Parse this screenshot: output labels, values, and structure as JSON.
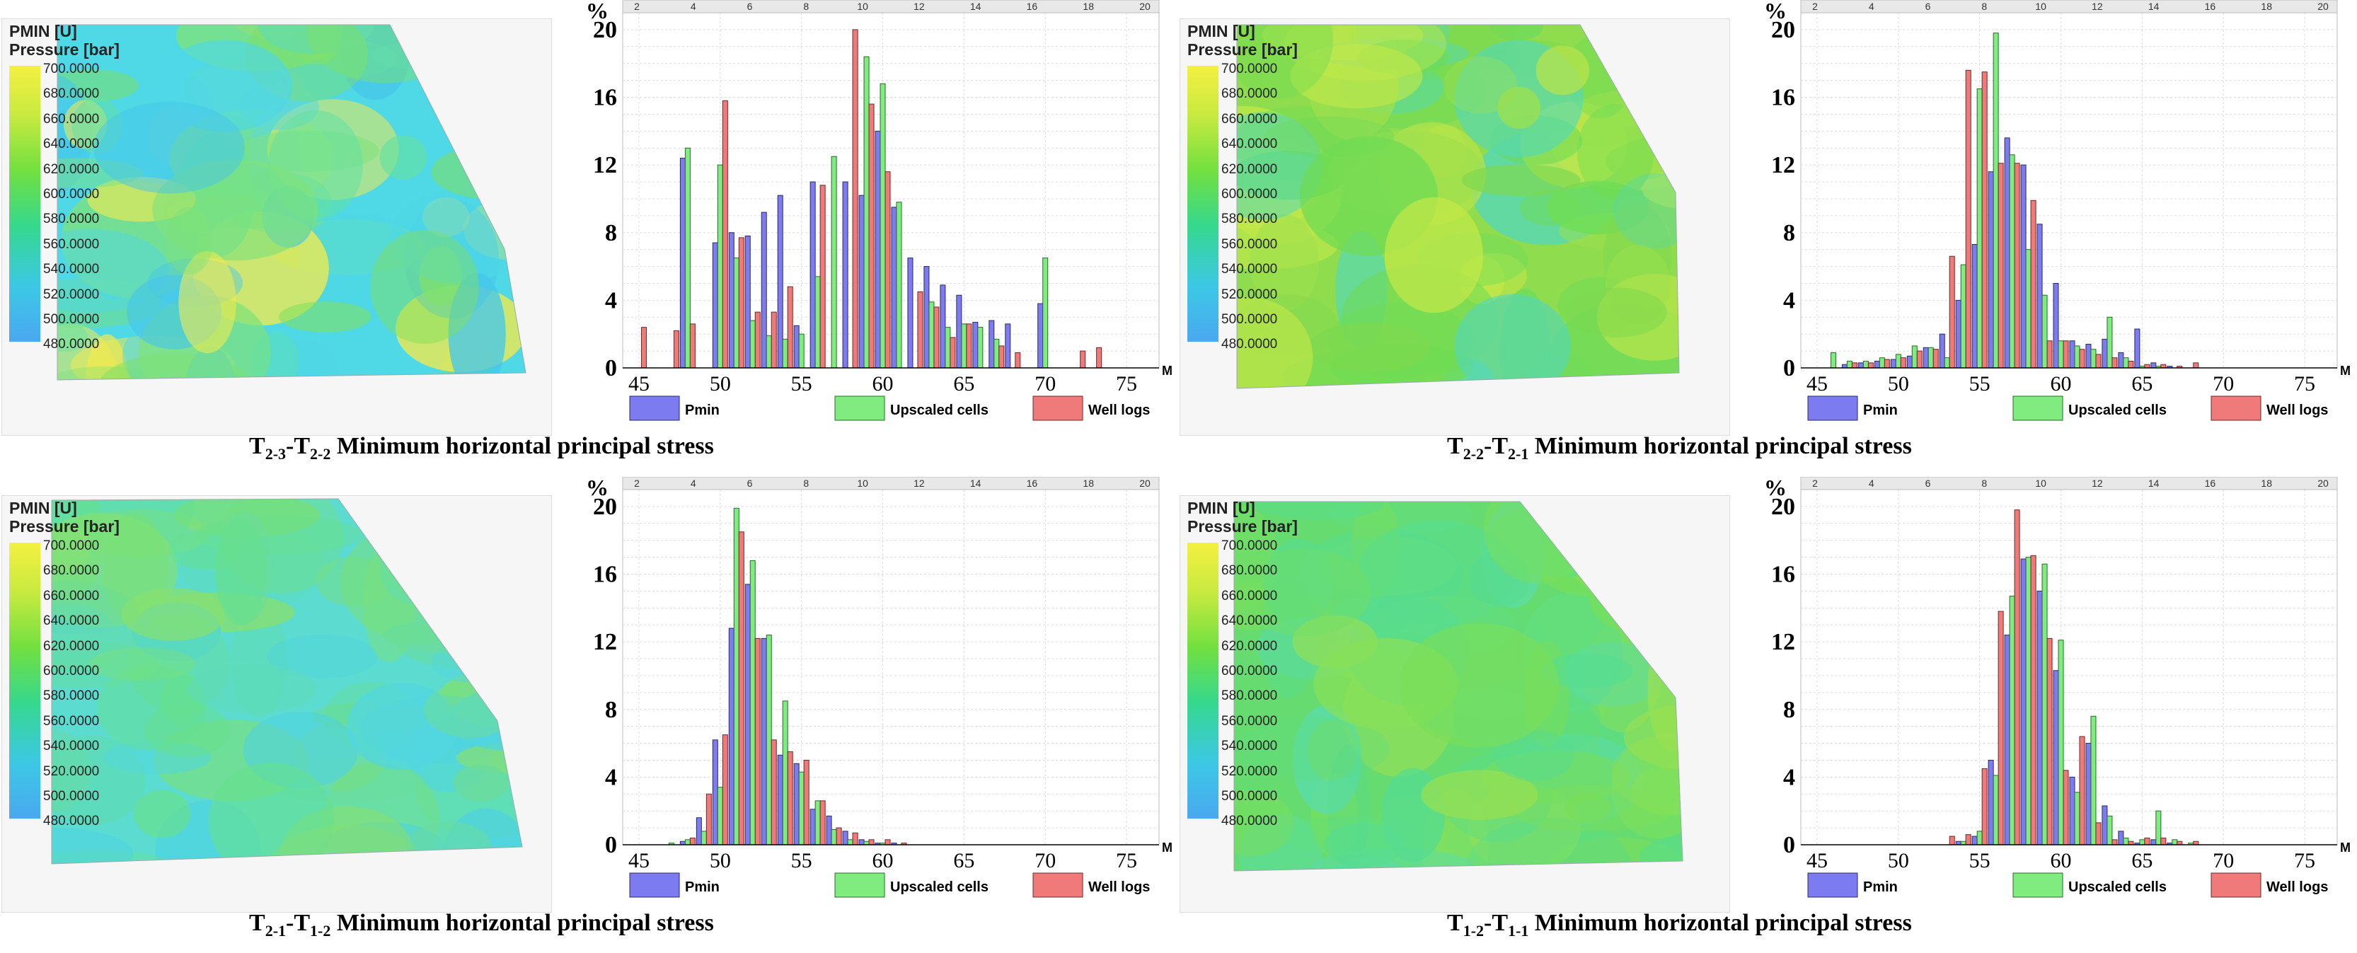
{
  "colors": {
    "pmin": "#7c7cf0",
    "upscaled": "#80ec80",
    "well_logs": "#f07a7a"
  },
  "map_legend": {
    "title": "PMIN [U]",
    "subtitle": "Pressure [bar]",
    "values": [
      "700.0000",
      "680.0000",
      "660.0000",
      "640.0000",
      "620.0000",
      "600.0000",
      "580.0000",
      "560.0000",
      "540.0000",
      "520.0000",
      "500.0000",
      "480.0000"
    ]
  },
  "chart_common": {
    "y_unit": "%",
    "x_unit": "MPa",
    "y_ticks": [
      "0",
      "4",
      "8",
      "12",
      "16",
      "20"
    ],
    "x_ticks": [
      "45",
      "50",
      "55",
      "60",
      "65",
      "70",
      "75"
    ],
    "top_ticks": [
      "2",
      "4",
      "6",
      "8",
      "10",
      "12",
      "14",
      "16",
      "18",
      "20"
    ],
    "legend": [
      "Pmin",
      "Upscaled cells",
      "Well logs"
    ]
  },
  "panels": [
    {
      "caption": {
        "pre": "T",
        "s1": "2-3",
        "mid": "-T",
        "s2": "2-2",
        "rest": " Minimum horizontal principal stress"
      }
    },
    {
      "caption": {
        "pre": "T",
        "s1": "2-2",
        "mid": "-T",
        "s2": "2-1",
        "rest": " Minimum horizontal principal stress"
      }
    },
    {
      "caption": {
        "pre": "T",
        "s1": "2-1",
        "mid": "-T",
        "s2": "1-2",
        "rest": " Minimum horizontal principal stress"
      }
    },
    {
      "caption": {
        "pre": "T",
        "s1": "1-2",
        "mid": "-T",
        "s2": "1-1",
        "rest": " Minimum horizontal principal stress"
      }
    }
  ],
  "chart_data": [
    {
      "type": "bar",
      "title": "T2-3-T2-2 Minimum horizontal principal stress",
      "xlabel": "MPa",
      "ylabel": "%",
      "xlim": [
        44,
        77
      ],
      "ylim": [
        0,
        21
      ],
      "categories": [
        45,
        46,
        47,
        48,
        49,
        50,
        51,
        52,
        53,
        54,
        55,
        56,
        57,
        58,
        59,
        60,
        61,
        62,
        63,
        64,
        65,
        66,
        67,
        68,
        69,
        70,
        71,
        72,
        73,
        74,
        75,
        76
      ],
      "series": [
        {
          "name": "Pmin",
          "values": [
            0,
            0,
            0,
            12.4,
            0,
            7.4,
            8.0,
            7.8,
            9.2,
            10.2,
            2.5,
            11.0,
            0,
            11.0,
            10.2,
            14.0,
            9.5,
            6.5,
            6.0,
            4.9,
            4.3,
            2.7,
            2.8,
            2.6,
            0,
            3.8,
            0,
            0,
            0,
            0,
            0,
            0
          ]
        },
        {
          "name": "Upscaled cells",
          "values": [
            0,
            0,
            0,
            13.0,
            0,
            12.0,
            6.5,
            2.8,
            1.9,
            1.7,
            2.0,
            5.4,
            12.5,
            0,
            18.4,
            16.8,
            9.8,
            0,
            3.9,
            2.4,
            2.6,
            2.4,
            1.7,
            0,
            0,
            6.5,
            0,
            0,
            0,
            0,
            0,
            0
          ]
        },
        {
          "name": "Well logs",
          "values": [
            2.4,
            0,
            2.2,
            2.6,
            0,
            15.8,
            7.7,
            3.3,
            3.3,
            4.8,
            0,
            10.8,
            0,
            20.0,
            15.6,
            11.6,
            0,
            4.5,
            3.6,
            1.8,
            2.6,
            0,
            1.3,
            0.9,
            0,
            0,
            0,
            1.0,
            1.2,
            0,
            0,
            0
          ]
        }
      ]
    },
    {
      "type": "bar",
      "title": "T2-2-T2-1 Minimum horizontal principal stress",
      "xlabel": "MPa",
      "ylabel": "%",
      "xlim": [
        44,
        77
      ],
      "ylim": [
        0,
        21
      ],
      "categories": [
        45,
        46,
        47,
        48,
        49,
        50,
        51,
        52,
        53,
        54,
        55,
        56,
        57,
        58,
        59,
        60,
        61,
        62,
        63,
        64,
        65,
        66,
        67,
        68,
        69,
        70,
        71,
        72,
        73,
        74,
        75,
        76
      ],
      "series": [
        {
          "name": "Pmin",
          "values": [
            0,
            0,
            0.2,
            0.3,
            0.4,
            0.5,
            0.7,
            1.2,
            2.0,
            4.0,
            7.3,
            11.6,
            13.6,
            12.0,
            8.5,
            5.0,
            1.6,
            1.4,
            1.7,
            0.9,
            2.3,
            0.3,
            0.1,
            0,
            0,
            0,
            0,
            0,
            0,
            0,
            0,
            0
          ]
        },
        {
          "name": "Upscaled cells",
          "values": [
            0,
            0.9,
            0.4,
            0.4,
            0.6,
            0.8,
            1.3,
            1.2,
            0.6,
            6.1,
            16.5,
            19.8,
            12.6,
            7.0,
            4.3,
            1.6,
            1.3,
            1.1,
            3.0,
            0.6,
            0.1,
            0.1,
            0,
            0,
            0,
            0,
            0,
            0,
            0,
            0,
            0,
            0
          ]
        },
        {
          "name": "Well logs",
          "values": [
            0,
            0,
            0.3,
            0.3,
            0.5,
            0.6,
            1.0,
            1.1,
            6.6,
            17.6,
            17.5,
            12.1,
            12.1,
            9.9,
            1.6,
            1.6,
            1.1,
            0.8,
            0.6,
            0.4,
            0.2,
            0.2,
            0.1,
            0.3,
            0,
            0,
            0,
            0,
            0,
            0,
            0,
            0
          ]
        }
      ]
    },
    {
      "type": "bar",
      "title": "T2-1-T1-2 Minimum horizontal principal stress",
      "xlabel": "MPa",
      "ylabel": "%",
      "xlim": [
        44,
        77
      ],
      "ylim": [
        0,
        21
      ],
      "categories": [
        45,
        46,
        47,
        48,
        49,
        50,
        51,
        52,
        53,
        54,
        55,
        56,
        57,
        58,
        59,
        60,
        61,
        62,
        63,
        64,
        65,
        66,
        67,
        68,
        69,
        70,
        71,
        72,
        73,
        74,
        75,
        76
      ],
      "series": [
        {
          "name": "Pmin",
          "values": [
            0,
            0,
            0,
            0.2,
            1.6,
            6.2,
            12.8,
            15.4,
            12.2,
            5.3,
            4.8,
            2.1,
            1.7,
            0.8,
            0.3,
            0.1,
            0.1,
            0,
            0,
            0,
            0,
            0,
            0,
            0,
            0,
            0,
            0,
            0,
            0,
            0,
            0,
            0
          ]
        },
        {
          "name": "Upscaled cells",
          "values": [
            0,
            0,
            0.1,
            0.3,
            0.8,
            3.4,
            19.9,
            16.8,
            12.4,
            8.5,
            4.3,
            2.6,
            0.9,
            0.3,
            0.2,
            0.1,
            0,
            0,
            0,
            0,
            0,
            0,
            0,
            0,
            0,
            0,
            0,
            0,
            0,
            0,
            0,
            0
          ]
        },
        {
          "name": "Well logs",
          "values": [
            0,
            0,
            0,
            0.4,
            3.0,
            6.5,
            18.5,
            12.2,
            6.2,
            5.5,
            5.0,
            2.6,
            1.0,
            0.7,
            0.3,
            0.3,
            0.1,
            0,
            0,
            0,
            0,
            0,
            0,
            0,
            0,
            0,
            0,
            0,
            0,
            0,
            0,
            0
          ]
        }
      ]
    },
    {
      "type": "bar",
      "title": "T1-2-T1-1 Minimum horizontal principal stress",
      "xlabel": "MPa",
      "ylabel": "%",
      "xlim": [
        44,
        77
      ],
      "ylim": [
        0,
        21
      ],
      "categories": [
        45,
        46,
        47,
        48,
        49,
        50,
        51,
        52,
        53,
        54,
        55,
        56,
        57,
        58,
        59,
        60,
        61,
        62,
        63,
        64,
        65,
        66,
        67,
        68,
        69,
        70,
        71,
        72,
        73,
        74,
        75,
        76
      ],
      "series": [
        {
          "name": "Pmin",
          "values": [
            0,
            0,
            0,
            0,
            0,
            0,
            0,
            0,
            0,
            0.2,
            0.5,
            5.0,
            12.4,
            16.9,
            15.0,
            10.3,
            4.0,
            6.0,
            2.3,
            0.8,
            0.1,
            0.3,
            0.1,
            0,
            0,
            0,
            0,
            0,
            0,
            0,
            0,
            0
          ]
        },
        {
          "name": "Upscaled cells",
          "values": [
            0,
            0,
            0,
            0,
            0,
            0,
            0,
            0,
            0,
            0.2,
            0.8,
            4.1,
            14.7,
            17.0,
            16.6,
            12.1,
            3.1,
            7.6,
            1.7,
            0.4,
            0.3,
            2.0,
            0.3,
            0.1,
            0,
            0,
            0,
            0,
            0,
            0,
            0,
            0
          ]
        },
        {
          "name": "Well logs",
          "values": [
            0,
            0,
            0,
            0,
            0,
            0,
            0,
            0,
            0.5,
            0.6,
            4.5,
            13.8,
            19.8,
            17.1,
            12.2,
            4.4,
            6.4,
            1.3,
            0.3,
            0.2,
            0.4,
            0.4,
            0.2,
            0.2,
            0,
            0,
            0,
            0,
            0,
            0,
            0,
            0
          ]
        }
      ]
    }
  ]
}
